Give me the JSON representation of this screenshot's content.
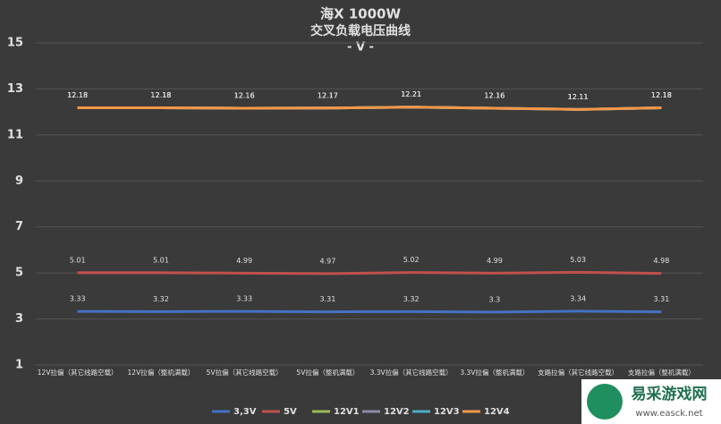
{
  "chart_data": {
    "type": "line",
    "title": "海X 1000W",
    "subtitle": "交叉负载电压曲线",
    "unit_label": "- V -",
    "categories": [
      "12V拉偏（其它线路空载）",
      "12V拉偏（整机满载）",
      "5V拉偏（其它线路空载）",
      "5V拉偏（整机满载）",
      "3.3V拉偏（其它线路空载）",
      "3.3V拉偏（整机满载）",
      "支路拉偏（其它线路空载）",
      "支路拉偏（整机满载）"
    ],
    "series": [
      {
        "name": "3,3V",
        "color": "#4472c4",
        "values": [
          3.33,
          3.32,
          3.33,
          3.31,
          3.32,
          3.3,
          3.34,
          3.31
        ]
      },
      {
        "name": "5V",
        "color": "#c0504d",
        "values": [
          5.01,
          5.01,
          4.99,
          4.97,
          5.02,
          4.99,
          5.03,
          4.98
        ]
      },
      {
        "name": "12V1",
        "color": "#9bbb59",
        "values": [
          12.18,
          12.18,
          12.16,
          12.17,
          12.21,
          12.16,
          12.11,
          12.18
        ]
      },
      {
        "name": "12V2",
        "color": "#8a8aa8",
        "values": [
          12.18,
          12.18,
          12.16,
          12.17,
          12.21,
          12.16,
          12.11,
          12.18
        ]
      },
      {
        "name": "12V3",
        "color": "#4bacc6",
        "values": [
          12.18,
          12.18,
          12.16,
          12.17,
          12.21,
          12.16,
          12.11,
          12.18
        ]
      },
      {
        "name": "12V4",
        "color": "#f79646",
        "values": [
          12.18,
          12.18,
          12.16,
          12.17,
          12.21,
          12.16,
          12.11,
          12.18
        ]
      }
    ],
    "ylim": [
      1,
      15
    ],
    "yticks": [
      1,
      3,
      5,
      7,
      9,
      11,
      13,
      15
    ],
    "grid": true,
    "legend": "bottom"
  },
  "watermark": {
    "text": "易采游戏网",
    "url": "www.easck.net"
  }
}
